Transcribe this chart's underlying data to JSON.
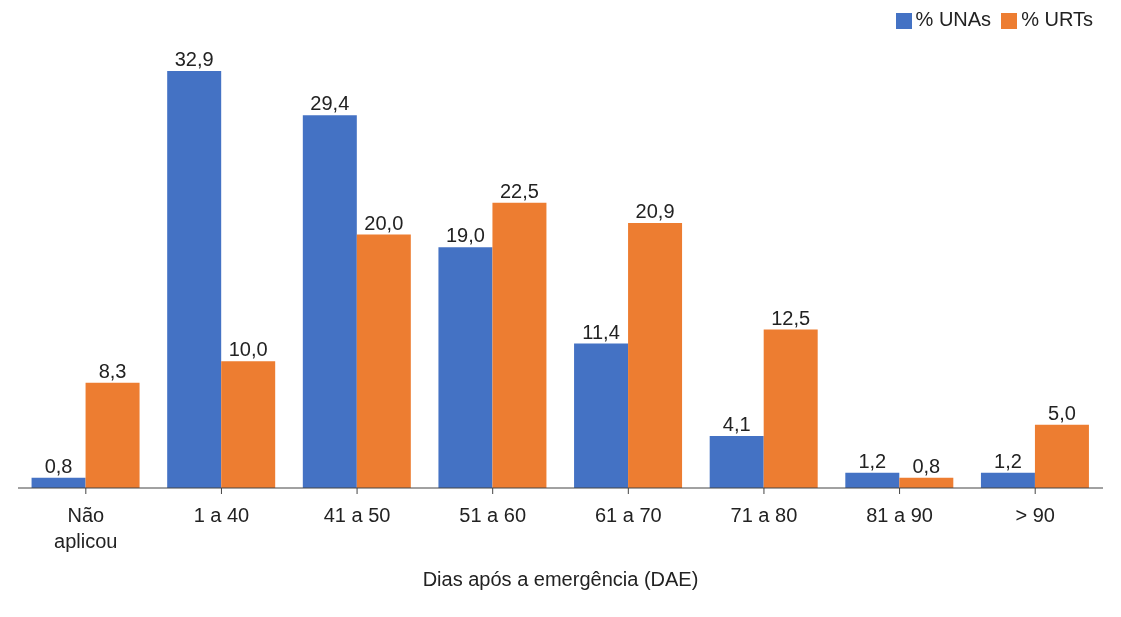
{
  "chart_data": {
    "type": "bar",
    "xlabel": "Dias após a emergência (DAE)",
    "categories": [
      "Não aplicou",
      "1 a 40",
      "41 a 50",
      "51 a 60",
      "61 a 70",
      "71 a 80",
      "81 a 90",
      "> 90"
    ],
    "series": [
      {
        "name": "% UNAs",
        "color": "#4472c4",
        "values": [
          0.8,
          32.9,
          29.4,
          19.0,
          11.4,
          4.1,
          1.2,
          1.2
        ],
        "value_labels": [
          "0,8",
          "32,9",
          "29,4",
          "19,0",
          "11,4",
          "4,1",
          "1,2",
          "1,2"
        ]
      },
      {
        "name": "% URTs",
        "color": "#ed7d31",
        "values": [
          8.3,
          10.0,
          20.0,
          22.5,
          20.9,
          12.5,
          0.8,
          5.0
        ],
        "value_labels": [
          "8,3",
          "10,0",
          "20,0",
          "22,5",
          "20,9",
          "12,5",
          "0,8",
          "5,0"
        ]
      }
    ],
    "legend": "top right",
    "grid": false
  }
}
